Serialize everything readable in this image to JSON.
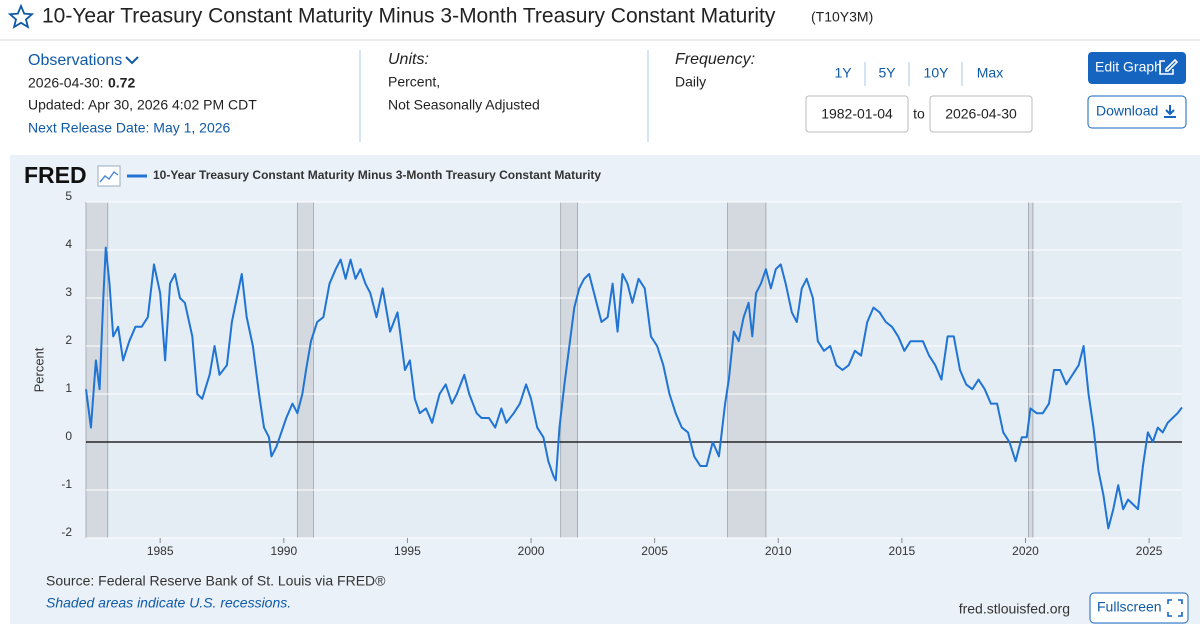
{
  "header": {
    "title": "10-Year Treasury Constant Maturity Minus 3-Month Treasury Constant Maturity",
    "series_id": "(T10Y3M)"
  },
  "observations": {
    "label": "Observations",
    "date": "2026-04-30:",
    "value": 0.72,
    "updated": "Updated: Apr 30, 2026 4:02 PM CDT",
    "next_release": "Next Release Date: May 1, 2026"
  },
  "units": {
    "label": "Units:",
    "line1": "Percent,",
    "line2": "Not Seasonally Adjusted"
  },
  "frequency": {
    "label": "Frequency:",
    "value": "Daily"
  },
  "range": {
    "buttons": [
      "1Y",
      "5Y",
      "10Y",
      "Max"
    ],
    "start": "1982-01-04",
    "to": "to",
    "end": "2026-04-30"
  },
  "actions": {
    "edit": "Edit Graph",
    "download": "Download",
    "fullscreen": "Fullscreen"
  },
  "chart_data": {
    "type": "line",
    "logo": "FRED",
    "ylabel": "Percent",
    "source": "Source: Federal Reserve Bank of St. Louis via FRED®",
    "note": "Shaded areas indicate U.S. recessions.",
    "url": "fred.stlouisfed.org",
    "xlim": [
      1982.0,
      2026.33
    ],
    "xticks": [
      1985,
      1990,
      1995,
      2000,
      2005,
      2010,
      2015,
      2020,
      2025
    ],
    "ylim": [
      -2,
      5
    ],
    "yticks": [
      5,
      4,
      3,
      2,
      1,
      0,
      -1,
      -2
    ],
    "grid": true,
    "recessions": [
      [
        1982.0,
        1982.88
      ],
      [
        1990.55,
        1991.2
      ],
      [
        2001.2,
        2001.88
      ],
      [
        2007.95,
        2009.5
      ],
      [
        2020.12,
        2020.3
      ]
    ],
    "x": [
      1982.0,
      1982.2,
      1982.4,
      1982.55,
      1982.7,
      1982.8,
      1982.95,
      1983.1,
      1983.3,
      1983.5,
      1983.75,
      1984.0,
      1984.25,
      1984.5,
      1984.75,
      1985.0,
      1985.2,
      1985.4,
      1985.6,
      1985.8,
      1986.0,
      1986.3,
      1986.5,
      1986.7,
      1987.0,
      1987.2,
      1987.4,
      1987.7,
      1987.9,
      1988.1,
      1988.3,
      1988.5,
      1988.75,
      1989.0,
      1989.2,
      1989.4,
      1989.5,
      1989.7,
      1989.9,
      1990.1,
      1990.35,
      1990.55,
      1990.75,
      1990.9,
      1991.1,
      1991.35,
      1991.6,
      1991.85,
      1992.1,
      1992.3,
      1992.5,
      1992.7,
      1992.9,
      1993.1,
      1993.3,
      1993.5,
      1993.75,
      1994.0,
      1994.3,
      1994.6,
      1994.9,
      1995.1,
      1995.3,
      1995.5,
      1995.75,
      1996.0,
      1996.3,
      1996.55,
      1996.8,
      1997.0,
      1997.3,
      1997.5,
      1997.8,
      1998.0,
      1998.3,
      1998.55,
      1998.8,
      1999.0,
      1999.3,
      1999.55,
      1999.8,
      2000.0,
      2000.25,
      2000.5,
      2000.7,
      2000.9,
      2001.0,
      2001.15,
      2001.35,
      2001.55,
      2001.75,
      2001.95,
      2002.15,
      2002.35,
      2002.6,
      2002.85,
      2003.1,
      2003.3,
      2003.5,
      2003.7,
      2003.9,
      2004.1,
      2004.35,
      2004.6,
      2004.85,
      2005.1,
      2005.35,
      2005.6,
      2005.85,
      2006.1,
      2006.35,
      2006.6,
      2006.85,
      2007.1,
      2007.35,
      2007.6,
      2007.85,
      2008.0,
      2008.2,
      2008.4,
      2008.6,
      2008.8,
      2008.95,
      2009.1,
      2009.3,
      2009.5,
      2009.7,
      2009.9,
      2010.1,
      2010.3,
      2010.55,
      2010.75,
      2010.95,
      2011.15,
      2011.4,
      2011.6,
      2011.85,
      2012.1,
      2012.35,
      2012.6,
      2012.85,
      2013.1,
      2013.35,
      2013.6,
      2013.85,
      2014.1,
      2014.35,
      2014.6,
      2014.85,
      2015.1,
      2015.35,
      2015.6,
      2015.85,
      2016.1,
      2016.35,
      2016.6,
      2016.85,
      2017.1,
      2017.35,
      2017.6,
      2017.85,
      2018.1,
      2018.35,
      2018.6,
      2018.85,
      2019.1,
      2019.35,
      2019.6,
      2019.85,
      2020.05,
      2020.2,
      2020.45,
      2020.7,
      2020.95,
      2021.15,
      2021.4,
      2021.65,
      2021.9,
      2022.15,
      2022.35,
      2022.55,
      2022.75,
      2022.95,
      2023.15,
      2023.35,
      2023.55,
      2023.75,
      2023.95,
      2024.15,
      2024.35,
      2024.55,
      2024.75,
      2024.95,
      2025.15,
      2025.35,
      2025.55,
      2025.75,
      2025.95,
      2026.15,
      2026.33
    ],
    "series": [
      {
        "name": "10-Year Treasury Constant Maturity Minus 3-Month Treasury Constant Maturity",
        "color": "#1f74d4",
        "values": [
          1.1,
          0.3,
          1.7,
          1.1,
          3.0,
          4.05,
          3.3,
          2.2,
          2.4,
          1.7,
          2.1,
          2.4,
          2.4,
          2.6,
          3.7,
          3.1,
          1.7,
          3.3,
          3.5,
          3.0,
          2.9,
          2.2,
          1.0,
          0.9,
          1.4,
          2.0,
          1.4,
          1.6,
          2.5,
          3.0,
          3.5,
          2.6,
          2.0,
          1.0,
          0.3,
          0.1,
          -0.3,
          -0.1,
          0.2,
          0.5,
          0.8,
          0.6,
          1.0,
          1.5,
          2.1,
          2.5,
          2.6,
          3.3,
          3.6,
          3.8,
          3.4,
          3.8,
          3.4,
          3.6,
          3.3,
          3.1,
          2.6,
          3.2,
          2.3,
          2.7,
          1.5,
          1.7,
          0.9,
          0.6,
          0.7,
          0.4,
          1.0,
          1.2,
          0.8,
          1.0,
          1.4,
          1.0,
          0.6,
          0.5,
          0.5,
          0.3,
          0.7,
          0.4,
          0.6,
          0.8,
          1.2,
          0.9,
          0.3,
          0.1,
          -0.4,
          -0.7,
          -0.8,
          0.3,
          1.2,
          2.0,
          2.8,
          3.2,
          3.4,
          3.5,
          3.0,
          2.5,
          2.6,
          3.3,
          2.3,
          3.5,
          3.3,
          2.9,
          3.4,
          3.2,
          2.2,
          2.0,
          1.6,
          1.0,
          0.6,
          0.3,
          0.2,
          -0.3,
          -0.5,
          -0.5,
          0.0,
          -0.3,
          0.8,
          1.3,
          2.3,
          2.1,
          2.6,
          2.9,
          2.2,
          3.1,
          3.3,
          3.6,
          3.2,
          3.6,
          3.7,
          3.3,
          2.7,
          2.5,
          3.2,
          3.4,
          3.0,
          2.1,
          1.9,
          2.0,
          1.6,
          1.5,
          1.6,
          1.9,
          1.8,
          2.5,
          2.8,
          2.7,
          2.5,
          2.4,
          2.2,
          1.9,
          2.1,
          2.1,
          2.1,
          1.8,
          1.6,
          1.3,
          2.2,
          2.2,
          1.5,
          1.2,
          1.1,
          1.3,
          1.1,
          0.8,
          0.8,
          0.2,
          0.0,
          -0.4,
          0.1,
          0.1,
          0.7,
          0.6,
          0.6,
          0.8,
          1.5,
          1.5,
          1.2,
          1.4,
          1.6,
          2.0,
          1.0,
          0.3,
          -0.6,
          -1.1,
          -1.8,
          -1.4,
          -0.9,
          -1.4,
          -1.2,
          -1.3,
          -1.4,
          -0.5,
          0.2,
          0.0,
          0.3,
          0.2,
          0.4,
          0.5,
          0.6,
          0.72
        ]
      }
    ]
  }
}
